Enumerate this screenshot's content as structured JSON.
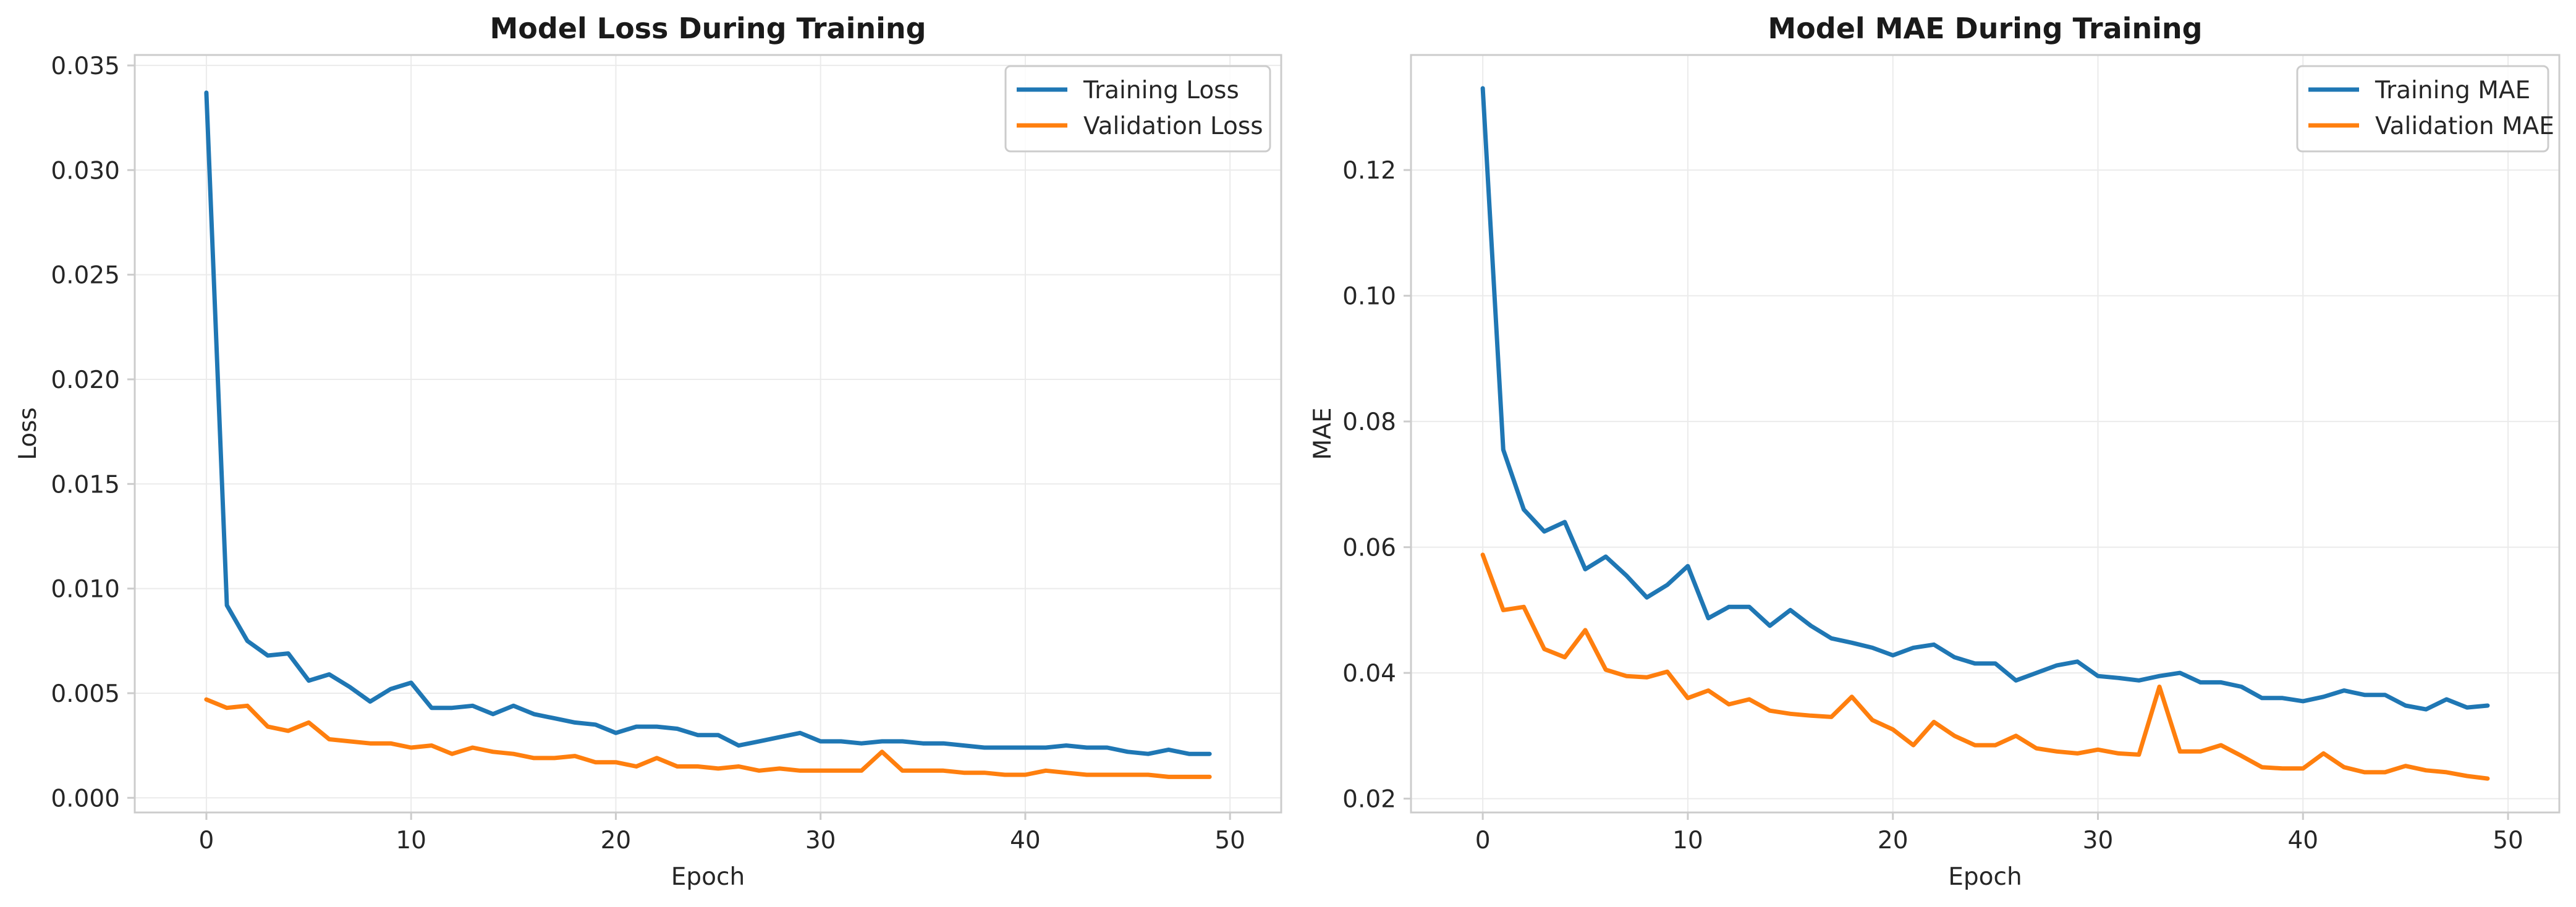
{
  "chart_data": [
    {
      "type": "line",
      "title": "Model Loss During Training",
      "xlabel": "Epoch",
      "ylabel": "Loss",
      "xlim": [
        -3.5,
        52.5
      ],
      "ylim": [
        -0.0007,
        0.0355
      ],
      "xticks": [
        0,
        10,
        20,
        30,
        40,
        50
      ],
      "yticks": [
        0.0,
        0.005,
        0.01,
        0.015,
        0.02,
        0.025,
        0.03,
        0.035
      ],
      "ytick_labels": [
        "0.000",
        "0.005",
        "0.010",
        "0.015",
        "0.020",
        "0.025",
        "0.030",
        "0.035"
      ],
      "grid": true,
      "legend_position": "top-right",
      "x": [
        0,
        1,
        2,
        3,
        4,
        5,
        6,
        7,
        8,
        9,
        10,
        11,
        12,
        13,
        14,
        15,
        16,
        17,
        18,
        19,
        20,
        21,
        22,
        23,
        24,
        25,
        26,
        27,
        28,
        29,
        30,
        31,
        32,
        33,
        34,
        35,
        36,
        37,
        38,
        39,
        40,
        41,
        42,
        43,
        44,
        45,
        46,
        47,
        48,
        49
      ],
      "series": [
        {
          "name": "Training Loss",
          "color": "#1f77b4",
          "values": [
            0.0337,
            0.0092,
            0.0075,
            0.0068,
            0.0069,
            0.0056,
            0.0059,
            0.0053,
            0.0046,
            0.0052,
            0.0055,
            0.0043,
            0.0043,
            0.0044,
            0.004,
            0.0044,
            0.004,
            0.0038,
            0.0036,
            0.0035,
            0.0031,
            0.0034,
            0.0034,
            0.0033,
            0.003,
            0.003,
            0.0025,
            0.0027,
            0.0029,
            0.0031,
            0.0027,
            0.0027,
            0.0026,
            0.0027,
            0.0027,
            0.0026,
            0.0026,
            0.0025,
            0.0024,
            0.0024,
            0.0024,
            0.0024,
            0.0025,
            0.0024,
            0.0024,
            0.0022,
            0.0021,
            0.0023,
            0.0021,
            0.0021
          ]
        },
        {
          "name": "Validation Loss",
          "color": "#ff7f0e",
          "values": [
            0.0047,
            0.0043,
            0.0044,
            0.0034,
            0.0032,
            0.0036,
            0.0028,
            0.0027,
            0.0026,
            0.0026,
            0.0024,
            0.0025,
            0.0021,
            0.0024,
            0.0022,
            0.0021,
            0.0019,
            0.0019,
            0.002,
            0.0017,
            0.0017,
            0.0015,
            0.0019,
            0.0015,
            0.0015,
            0.0014,
            0.0015,
            0.0013,
            0.0014,
            0.0013,
            0.0013,
            0.0013,
            0.0013,
            0.0022,
            0.0013,
            0.0013,
            0.0013,
            0.0012,
            0.0012,
            0.0011,
            0.0011,
            0.0013,
            0.0012,
            0.0011,
            0.0011,
            0.0011,
            0.0011,
            0.001,
            0.001,
            0.001
          ]
        }
      ]
    },
    {
      "type": "line",
      "title": "Model MAE During Training",
      "xlabel": "Epoch",
      "ylabel": "MAE",
      "xlim": [
        -3.5,
        52.5
      ],
      "ylim": [
        0.0178,
        0.1383
      ],
      "xticks": [
        0,
        10,
        20,
        30,
        40,
        50
      ],
      "yticks": [
        0.02,
        0.04,
        0.06,
        0.08,
        0.1,
        0.12
      ],
      "ytick_labels": [
        "0.02",
        "0.04",
        "0.06",
        "0.08",
        "0.10",
        "0.12"
      ],
      "grid": true,
      "legend_position": "top-right",
      "x": [
        0,
        1,
        2,
        3,
        4,
        5,
        6,
        7,
        8,
        9,
        10,
        11,
        12,
        13,
        14,
        15,
        16,
        17,
        18,
        19,
        20,
        21,
        22,
        23,
        24,
        25,
        26,
        27,
        28,
        29,
        30,
        31,
        32,
        33,
        34,
        35,
        36,
        37,
        38,
        39,
        40,
        41,
        42,
        43,
        44,
        45,
        46,
        47,
        48,
        49
      ],
      "series": [
        {
          "name": "Training MAE",
          "color": "#1f77b4",
          "values": [
            0.133,
            0.0755,
            0.066,
            0.0625,
            0.064,
            0.0565,
            0.0585,
            0.0555,
            0.052,
            0.054,
            0.057,
            0.0487,
            0.0505,
            0.0505,
            0.0475,
            0.05,
            0.0475,
            0.0455,
            0.0448,
            0.044,
            0.0428,
            0.044,
            0.0445,
            0.0425,
            0.0415,
            0.0415,
            0.0388,
            0.04,
            0.0412,
            0.0418,
            0.0395,
            0.0392,
            0.0388,
            0.0395,
            0.04,
            0.0385,
            0.0385,
            0.0378,
            0.036,
            0.036,
            0.0355,
            0.0362,
            0.0372,
            0.0365,
            0.0365,
            0.0348,
            0.0342,
            0.0358,
            0.0345,
            0.0348
          ]
        },
        {
          "name": "Validation MAE",
          "color": "#ff7f0e",
          "values": [
            0.0588,
            0.05,
            0.0505,
            0.0438,
            0.0425,
            0.0468,
            0.0405,
            0.0395,
            0.0393,
            0.0402,
            0.036,
            0.0372,
            0.035,
            0.0358,
            0.034,
            0.0335,
            0.0332,
            0.033,
            0.0362,
            0.0325,
            0.031,
            0.0285,
            0.0322,
            0.03,
            0.0285,
            0.0285,
            0.03,
            0.028,
            0.0275,
            0.0272,
            0.0278,
            0.0272,
            0.027,
            0.0378,
            0.0275,
            0.0275,
            0.0285,
            0.0268,
            0.025,
            0.0248,
            0.0248,
            0.0272,
            0.025,
            0.0242,
            0.0242,
            0.0252,
            0.0245,
            0.0242,
            0.0236,
            0.0232
          ]
        }
      ]
    }
  ]
}
